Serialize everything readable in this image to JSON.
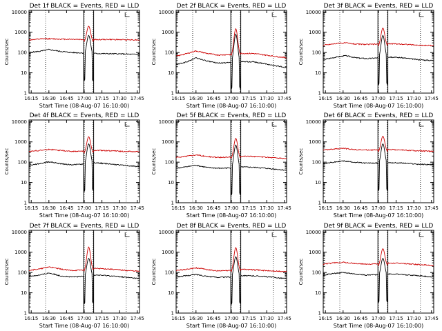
{
  "chart_data": [
    {
      "type": "line",
      "title": "Det 1f BLACK = Events, RED = LLD",
      "xlabel": "Start Time (08-Aug-07 16:10:00)",
      "ylabel": "Counts/sec",
      "yscale": "log",
      "ylim": [
        1,
        12000
      ],
      "xlim": [
        0,
        100
      ],
      "xticks": [
        "16:15",
        "16:30",
        "16:45",
        "17:00",
        "17:15",
        "17:30",
        "17:45"
      ],
      "yticks": [
        "1",
        "10",
        "100",
        "1000",
        "10000"
      ],
      "series": [
        {
          "color": "#000000",
          "base": [
            [
              0,
              100
            ],
            [
              10,
              115
            ],
            [
              18,
              140
            ],
            [
              28,
              115
            ],
            [
              38,
              100
            ],
            [
              50,
              95
            ],
            [
              58,
              90
            ],
            [
              70,
              88
            ],
            [
              85,
              85
            ],
            [
              100,
              80
            ]
          ],
          "peak": 700
        },
        {
          "color": "#cc0000",
          "base": [
            [
              0,
              420
            ],
            [
              15,
              480
            ],
            [
              28,
              460
            ],
            [
              40,
              450
            ],
            [
              55,
              430
            ],
            [
              70,
              440
            ],
            [
              85,
              430
            ],
            [
              100,
              420
            ]
          ],
          "peak": 2000
        }
      ]
    },
    {
      "type": "line",
      "title": "Det 2f BLACK = Events, RED = LLD",
      "xlabel": "Start Time (08-Aug-07 16:10:00)",
      "ylabel": "Counts/sec",
      "yscale": "log",
      "ylim": [
        1,
        12000
      ],
      "xlim": [
        0,
        100
      ],
      "xticks": [
        "16:15",
        "16:30",
        "16:45",
        "17:00",
        "17:15",
        "17:30",
        "17:45"
      ],
      "yticks": [
        "1",
        "10",
        "100",
        "1000",
        "10000"
      ],
      "series": [
        {
          "color": "#000000",
          "base": [
            [
              0,
              25
            ],
            [
              10,
              35
            ],
            [
              18,
              55
            ],
            [
              28,
              38
            ],
            [
              38,
              30
            ],
            [
              50,
              32
            ],
            [
              58,
              35
            ],
            [
              70,
              35
            ],
            [
              85,
              25
            ],
            [
              100,
              18
            ]
          ],
          "peak": 800
        },
        {
          "color": "#cc0000",
          "base": [
            [
              0,
              65
            ],
            [
              10,
              90
            ],
            [
              18,
              120
            ],
            [
              28,
              90
            ],
            [
              38,
              75
            ],
            [
              50,
              80
            ],
            [
              58,
              90
            ],
            [
              70,
              90
            ],
            [
              85,
              70
            ],
            [
              100,
              55
            ]
          ],
          "peak": 1500
        }
      ]
    },
    {
      "type": "line",
      "title": "Det 3f BLACK = Events, RED = LLD",
      "xlabel": "Start Time (08-Aug-07 16:10:00)",
      "ylabel": "Counts/sec",
      "yscale": "log",
      "ylim": [
        1,
        12000
      ],
      "xlim": [
        0,
        100
      ],
      "xticks": [
        "16:15",
        "16:30",
        "16:45",
        "17:00",
        "17:15",
        "17:30",
        "17:45"
      ],
      "yticks": [
        "1",
        "10",
        "100",
        "1000",
        "10000"
      ],
      "series": [
        {
          "color": "#000000",
          "base": [
            [
              0,
              45
            ],
            [
              12,
              60
            ],
            [
              20,
              70
            ],
            [
              30,
              55
            ],
            [
              40,
              50
            ],
            [
              50,
              55
            ],
            [
              60,
              60
            ],
            [
              72,
              55
            ],
            [
              85,
              45
            ],
            [
              100,
              40
            ]
          ],
          "peak": 700
        },
        {
          "color": "#cc0000",
          "base": [
            [
              0,
              230
            ],
            [
              12,
              280
            ],
            [
              20,
              300
            ],
            [
              30,
              260
            ],
            [
              40,
              250
            ],
            [
              50,
              260
            ],
            [
              60,
              270
            ],
            [
              72,
              260
            ],
            [
              85,
              230
            ],
            [
              100,
              220
            ]
          ],
          "peak": 1600
        }
      ]
    },
    {
      "type": "line",
      "title": "Det 4f BLACK = Events, RED = LLD",
      "xlabel": "Start Time (08-Aug-07 16:10:00)",
      "ylabel": "Counts/sec",
      "yscale": "log",
      "ylim": [
        1,
        12000
      ],
      "xlim": [
        0,
        100
      ],
      "xticks": [
        "16:15",
        "16:30",
        "16:45",
        "17:00",
        "17:15",
        "17:30",
        "17:45"
      ],
      "yticks": [
        "1",
        "10",
        "100",
        "1000",
        "10000"
      ],
      "series": [
        {
          "color": "#000000",
          "base": [
            [
              0,
              70
            ],
            [
              10,
              85
            ],
            [
              18,
              105
            ],
            [
              28,
              85
            ],
            [
              38,
              75
            ],
            [
              50,
              80
            ],
            [
              58,
              95
            ],
            [
              70,
              85
            ],
            [
              85,
              70
            ],
            [
              100,
              60
            ]
          ],
          "peak": 800
        },
        {
          "color": "#cc0000",
          "base": [
            [
              0,
              340
            ],
            [
              10,
              380
            ],
            [
              18,
              430
            ],
            [
              28,
              380
            ],
            [
              38,
              340
            ],
            [
              50,
              350
            ],
            [
              60,
              380
            ],
            [
              72,
              370
            ],
            [
              85,
              340
            ],
            [
              100,
              330
            ]
          ],
          "peak": 1800
        }
      ]
    },
    {
      "type": "line",
      "title": "Det 5f BLACK = Events, RED = LLD",
      "xlabel": "Start Time (08-Aug-07 16:10:00)",
      "ylabel": "Counts/sec",
      "yscale": "log",
      "ylim": [
        1,
        12000
      ],
      "xlim": [
        0,
        100
      ],
      "xticks": [
        "16:15",
        "16:30",
        "16:45",
        "17:00",
        "17:15",
        "17:30",
        "17:45"
      ],
      "yticks": [
        "1",
        "10",
        "100",
        "1000",
        "10000"
      ],
      "series": [
        {
          "color": "#000000",
          "base": [
            [
              0,
              50
            ],
            [
              10,
              60
            ],
            [
              18,
              70
            ],
            [
              28,
              55
            ],
            [
              38,
              50
            ],
            [
              50,
              52
            ],
            [
              60,
              58
            ],
            [
              72,
              55
            ],
            [
              85,
              48
            ],
            [
              100,
              40
            ]
          ],
          "peak": 700
        },
        {
          "color": "#cc0000",
          "base": [
            [
              0,
              170
            ],
            [
              10,
              200
            ],
            [
              18,
              230
            ],
            [
              28,
              190
            ],
            [
              38,
              170
            ],
            [
              50,
              180
            ],
            [
              60,
              200
            ],
            [
              72,
              190
            ],
            [
              85,
              170
            ],
            [
              100,
              150
            ]
          ],
          "peak": 1500
        }
      ]
    },
    {
      "type": "line",
      "title": "Det 6f BLACK = Events, RED = LLD",
      "xlabel": "Start Time (08-Aug-07 16:10:00)",
      "ylabel": "Counts/sec",
      "yscale": "log",
      "ylim": [
        1,
        12000
      ],
      "xlim": [
        0,
        100
      ],
      "xticks": [
        "16:15",
        "16:30",
        "16:45",
        "17:00",
        "17:15",
        "17:30",
        "17:45"
      ],
      "yticks": [
        "1",
        "10",
        "100",
        "1000",
        "10000"
      ],
      "series": [
        {
          "color": "#000000",
          "base": [
            [
              0,
              85
            ],
            [
              10,
              100
            ],
            [
              18,
              115
            ],
            [
              28,
              100
            ],
            [
              38,
              90
            ],
            [
              50,
              90
            ],
            [
              60,
              95
            ],
            [
              72,
              90
            ],
            [
              85,
              80
            ],
            [
              100,
              75
            ]
          ],
          "peak": 800
        },
        {
          "color": "#cc0000",
          "base": [
            [
              0,
              400
            ],
            [
              10,
              440
            ],
            [
              18,
              480
            ],
            [
              28,
              420
            ],
            [
              38,
              400
            ],
            [
              50,
              400
            ],
            [
              60,
              420
            ],
            [
              72,
              400
            ],
            [
              85,
              360
            ],
            [
              100,
              340
            ]
          ],
          "peak": 1900
        }
      ]
    },
    {
      "type": "line",
      "title": "Det 7f BLACK = Events, RED = LLD",
      "xlabel": "Start Time (08-Aug-07 16:10:00)",
      "ylabel": "Counts/sec",
      "yscale": "log",
      "ylim": [
        1,
        12000
      ],
      "xlim": [
        0,
        100
      ],
      "xticks": [
        "16:15",
        "16:30",
        "16:45",
        "17:00",
        "17:15",
        "17:30",
        "17:45"
      ],
      "yticks": [
        "1",
        "10",
        "100",
        "1000",
        "10000"
      ],
      "series": [
        {
          "color": "#000000",
          "base": [
            [
              0,
              65
            ],
            [
              10,
              75
            ],
            [
              18,
              95
            ],
            [
              28,
              70
            ],
            [
              38,
              60
            ],
            [
              50,
              65
            ],
            [
              60,
              75
            ],
            [
              72,
              70
            ],
            [
              85,
              60
            ],
            [
              100,
              50
            ]
          ],
          "peak": 500
        },
        {
          "color": "#cc0000",
          "base": [
            [
              0,
              130
            ],
            [
              10,
              150
            ],
            [
              18,
              190
            ],
            [
              28,
              150
            ],
            [
              38,
              125
            ],
            [
              50,
              135
            ],
            [
              60,
              160
            ],
            [
              72,
              150
            ],
            [
              85,
              130
            ],
            [
              100,
              115
            ]
          ],
          "peak": 1800
        }
      ]
    },
    {
      "type": "line",
      "title": "Det 8f BLACK = Events, RED = LLD",
      "xlabel": "Start Time (08-Aug-07 16:10:00)",
      "ylabel": "Counts/sec",
      "yscale": "log",
      "ylim": [
        1,
        12000
      ],
      "xlim": [
        0,
        100
      ],
      "xticks": [
        "16:15",
        "16:30",
        "16:45",
        "17:00",
        "17:15",
        "17:30",
        "17:45"
      ],
      "yticks": [
        "1",
        "10",
        "100",
        "1000",
        "10000"
      ],
      "series": [
        {
          "color": "#000000",
          "base": [
            [
              0,
              60
            ],
            [
              10,
              70
            ],
            [
              18,
              80
            ],
            [
              28,
              65
            ],
            [
              38,
              58
            ],
            [
              50,
              60
            ],
            [
              60,
              70
            ],
            [
              72,
              68
            ],
            [
              85,
              60
            ],
            [
              100,
              50
            ]
          ],
          "peak": 600
        },
        {
          "color": "#cc0000",
          "base": [
            [
              0,
              125
            ],
            [
              10,
              145
            ],
            [
              18,
              170
            ],
            [
              28,
              140
            ],
            [
              38,
              120
            ],
            [
              50,
              125
            ],
            [
              60,
              145
            ],
            [
              72,
              135
            ],
            [
              85,
              120
            ],
            [
              100,
              110
            ]
          ],
          "peak": 1700
        }
      ]
    },
    {
      "type": "line",
      "title": "Det 9f BLACK = Events, RED = LLD",
      "xlabel": "Start Time (08-Aug-07 16:10:00)",
      "ylabel": "Counts/sec",
      "yscale": "log",
      "ylim": [
        1,
        12000
      ],
      "xlim": [
        0,
        100
      ],
      "xticks": [
        "16:15",
        "16:30",
        "16:45",
        "17:00",
        "17:15",
        "17:30",
        "17:45"
      ],
      "yticks": [
        "1",
        "10",
        "100",
        "1000",
        "10000"
      ],
      "series": [
        {
          "color": "#000000",
          "base": [
            [
              0,
              75
            ],
            [
              10,
              90
            ],
            [
              18,
              100
            ],
            [
              28,
              85
            ],
            [
              38,
              75
            ],
            [
              50,
              78
            ],
            [
              60,
              85
            ],
            [
              72,
              80
            ],
            [
              85,
              70
            ],
            [
              100,
              60
            ]
          ],
          "peak": 500
        },
        {
          "color": "#cc0000",
          "base": [
            [
              0,
              260
            ],
            [
              10,
              300
            ],
            [
              18,
              320
            ],
            [
              28,
              280
            ],
            [
              38,
              260
            ],
            [
              50,
              265
            ],
            [
              60,
              290
            ],
            [
              72,
              280
            ],
            [
              85,
              250
            ],
            [
              100,
              220
            ]
          ],
          "peak": 1500
        }
      ]
    }
  ]
}
